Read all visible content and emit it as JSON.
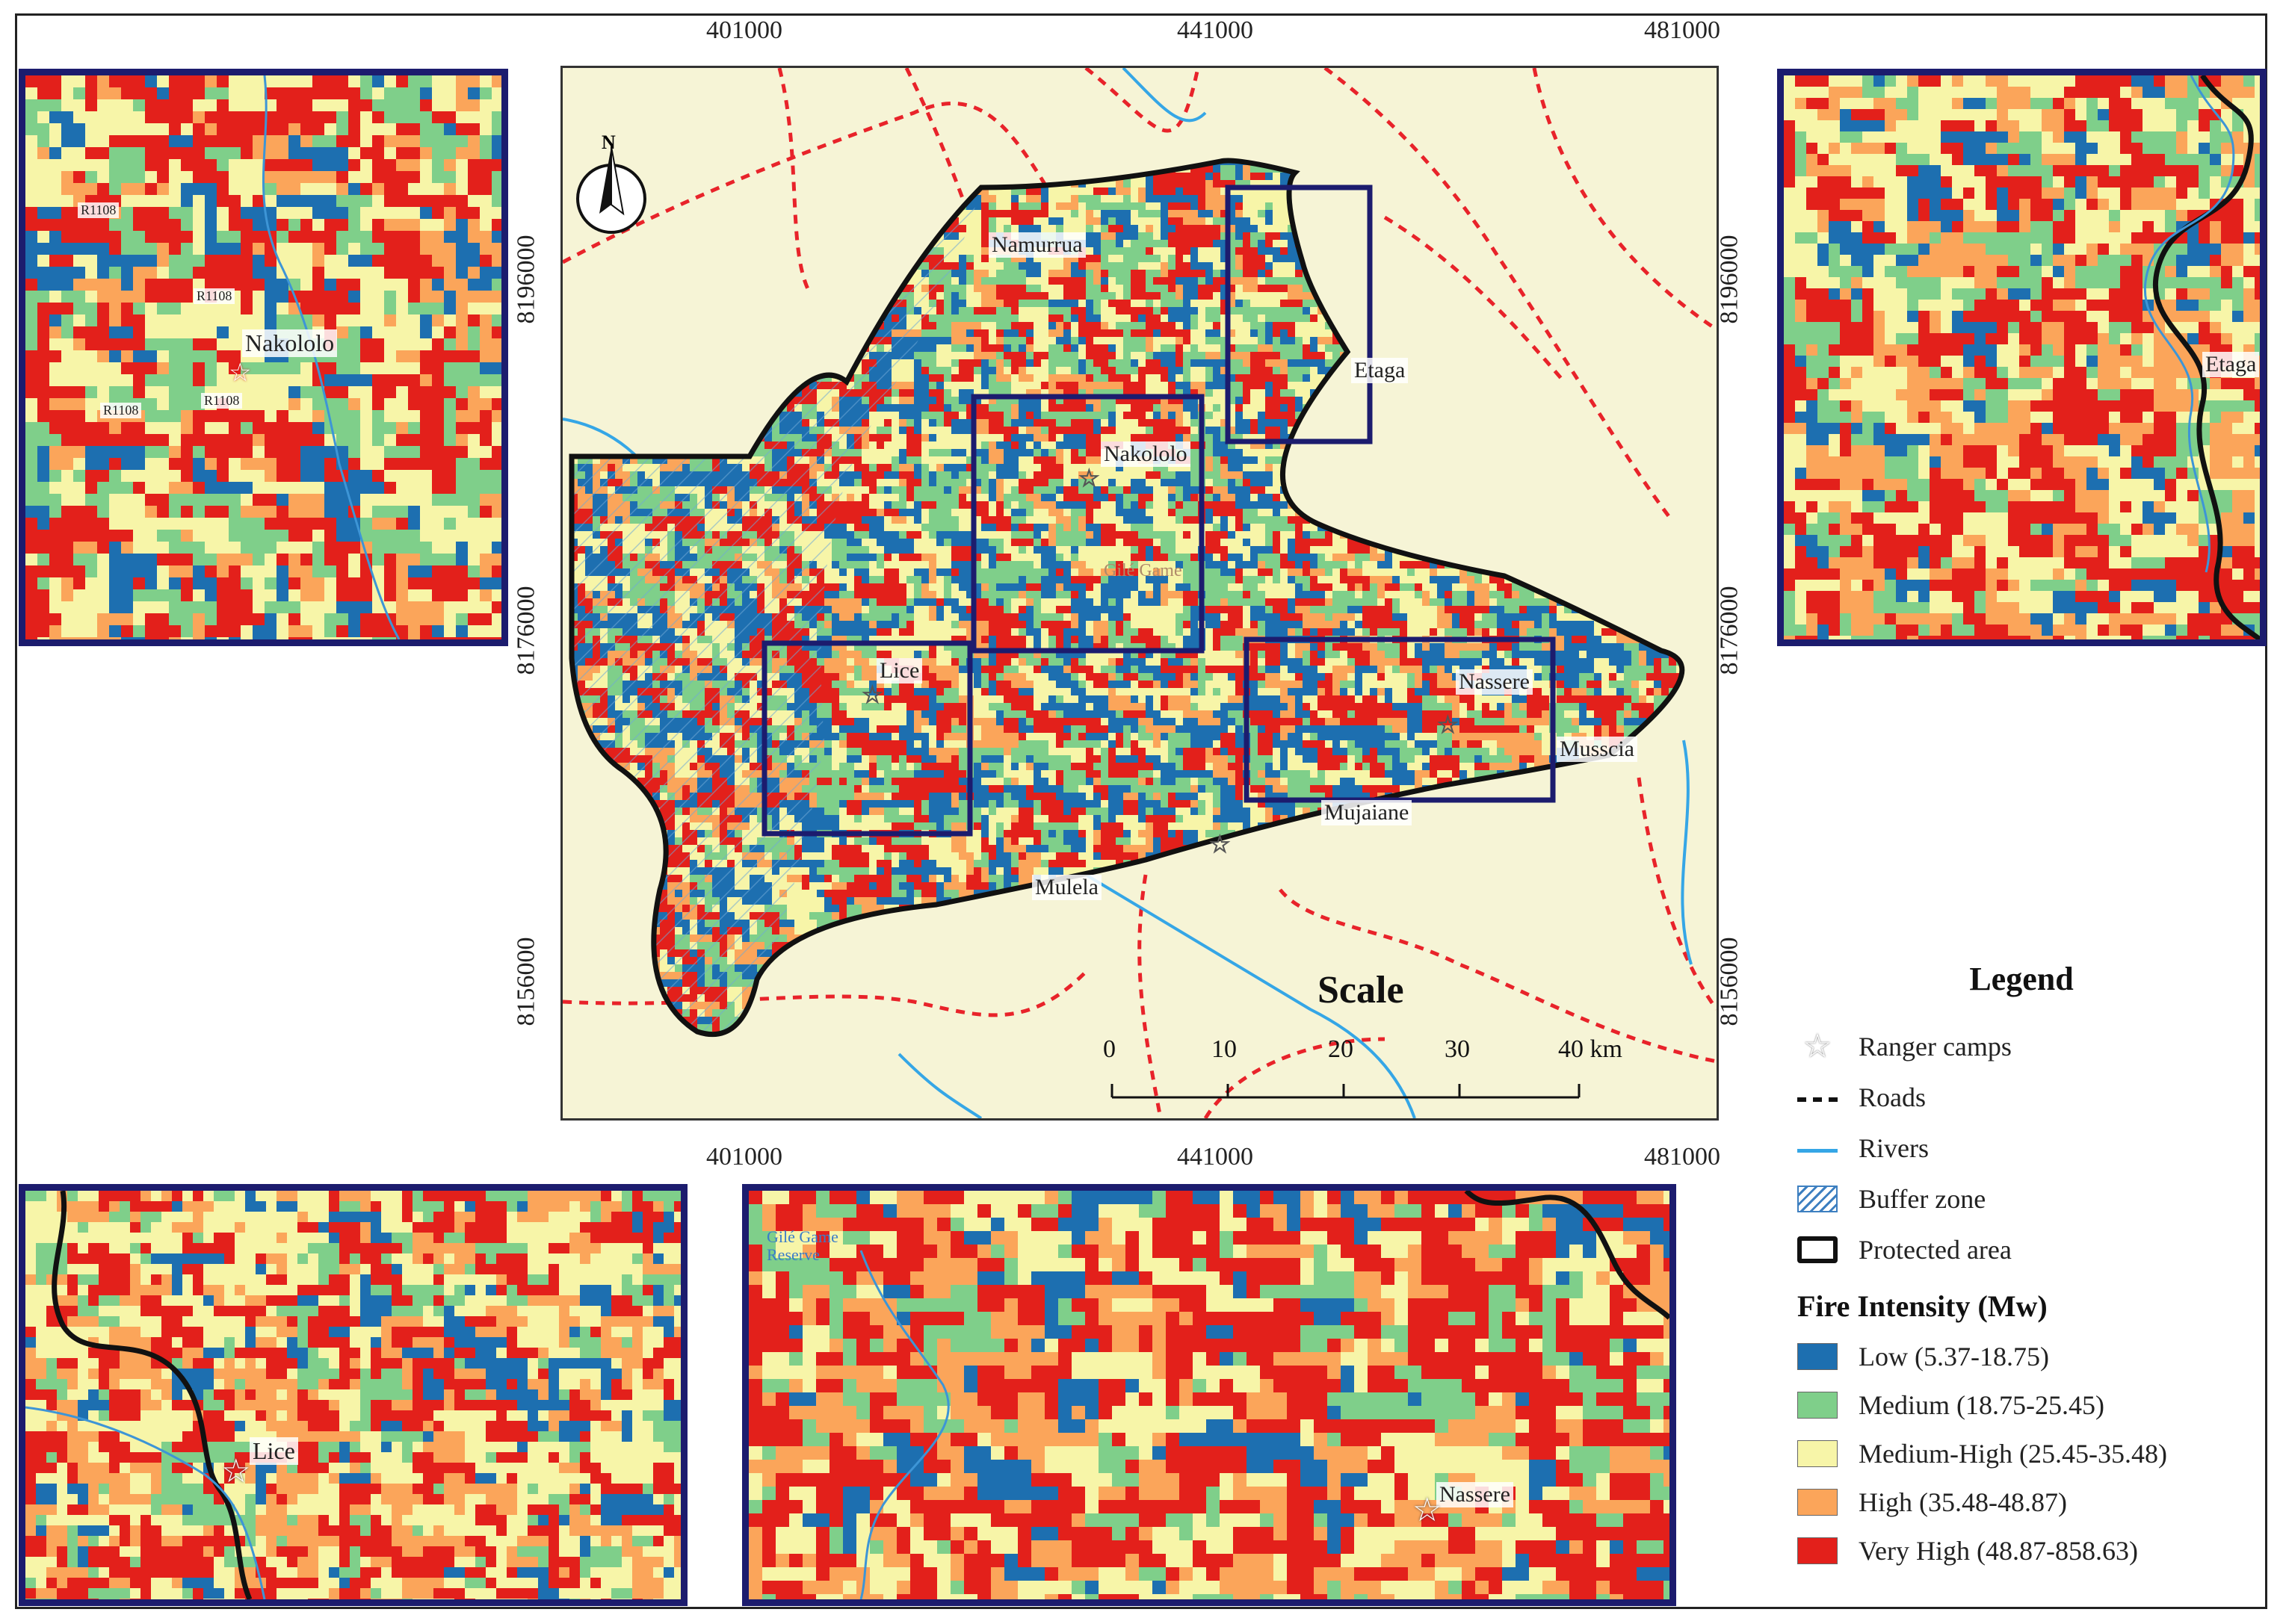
{
  "colors": {
    "low": "#1d6fb0",
    "medium": "#7fcf8a",
    "medium_high": "#f7f5a8",
    "high": "#fba55a",
    "very_high": "#e3201b",
    "background": "#f6f4d6",
    "road": "#e8232a",
    "river": "#35a6e6",
    "inset_frame": "#1c1c6e"
  },
  "map": {
    "x_ticks_top": [
      "401000",
      "441000",
      "481000"
    ],
    "x_ticks_bottom": [
      "401000",
      "441000",
      "481000"
    ],
    "y_ticks_left": [
      "8196000",
      "8176000",
      "8156000"
    ],
    "y_ticks_right": [
      "8196000",
      "8176000",
      "8156000"
    ],
    "north_label": "N",
    "places": {
      "namurrua": "Namurrua",
      "etaga": "Etaga",
      "nakololo": "Nakololo",
      "gile_game": "Gilé Game",
      "lice": "Lice",
      "nassere": "Nassere",
      "musscia": "Musscia",
      "mujaiane": "Mujaiane",
      "mulela": "Mulela"
    },
    "scale": {
      "title": "Scale",
      "labels": [
        "0",
        "10",
        "20",
        "30",
        "40 km"
      ]
    }
  },
  "insets": {
    "top_left": {
      "place": "Nakololo",
      "road_codes": [
        "R1108",
        "R1108",
        "R1108",
        "R1108"
      ]
    },
    "top_right": {
      "place": "Etaga"
    },
    "bottom_left": {
      "place": "Lice"
    },
    "bottom_middle": {
      "place": "Nassere",
      "reserve_label": "Gilé Game Reserve"
    }
  },
  "legend": {
    "title": "Legend",
    "items": [
      {
        "label": "Ranger camps",
        "icon": "star-icon"
      },
      {
        "label": "Roads",
        "icon": "dashed-line-icon"
      },
      {
        "label": "Rivers",
        "icon": "line-icon"
      },
      {
        "label": "Buffer zone",
        "icon": "hatch-icon"
      },
      {
        "label": "Protected area",
        "icon": "outline-box-icon"
      }
    ],
    "intensity_title": "Fire Intensity (Mw)",
    "classes": [
      {
        "label": "Low (5.37-18.75)",
        "key": "low"
      },
      {
        "label": "Medium (18.75-25.45)",
        "key": "medium"
      },
      {
        "label": "Medium-High (25.45-35.48)",
        "key": "medium_high"
      },
      {
        "label": "High (35.48-48.87)",
        "key": "high"
      },
      {
        "label": "Very High (48.87-858.63)",
        "key": "very_high"
      }
    ]
  }
}
